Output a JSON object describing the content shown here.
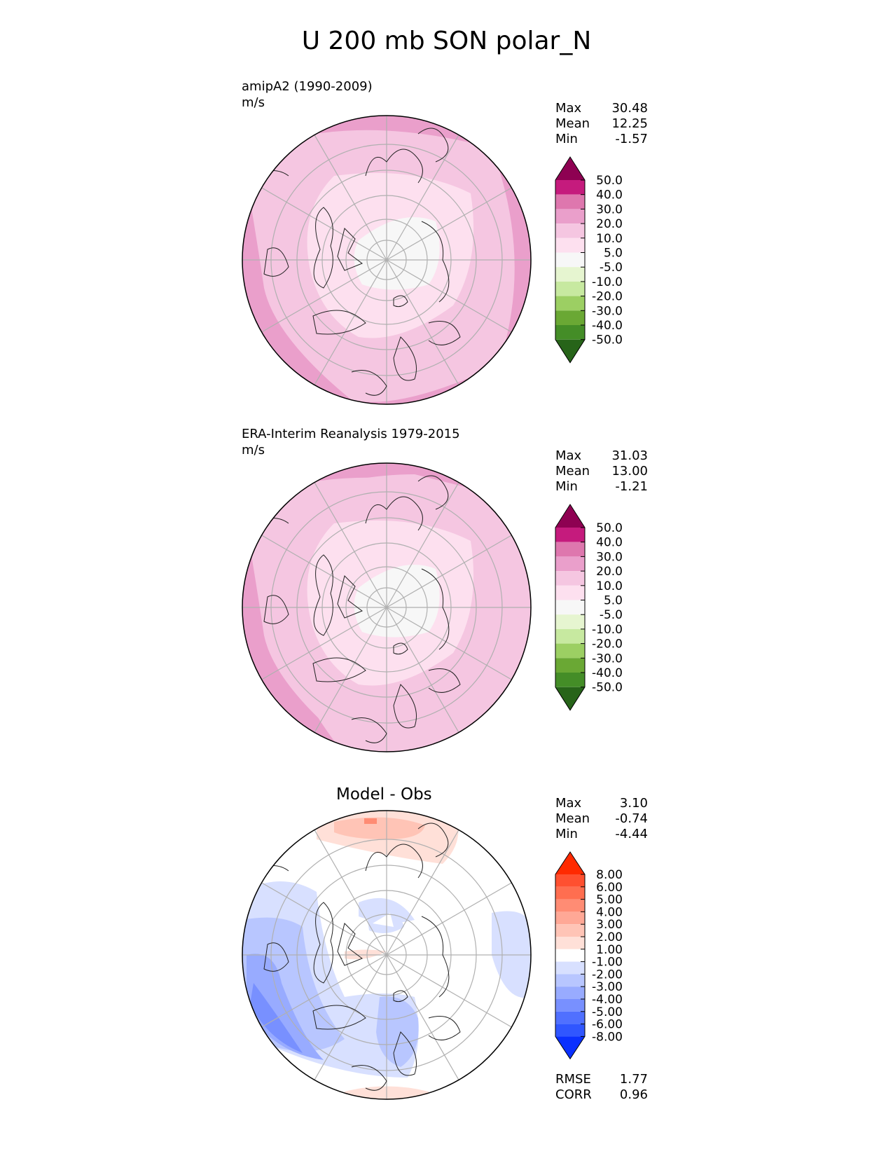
{
  "title": "U 200 mb SON polar_N",
  "panels": [
    {
      "label_line1": "amipA2 (1990-2009)",
      "label_line2": "m/s",
      "stats": {
        "max_label": "Max",
        "max": "30.48",
        "mean_label": "Mean",
        "mean": "12.25",
        "min_label": "Min",
        "min": "-1.57"
      }
    },
    {
      "label_line1": "ERA-Interim Reanalysis 1979-2015",
      "label_line2": "m/s",
      "stats": {
        "max_label": "Max",
        "max": "31.03",
        "mean_label": "Mean",
        "mean": "13.00",
        "min_label": "Min",
        "min": "-1.21"
      }
    },
    {
      "label_line1": "Model - Obs",
      "stats": {
        "max_label": "Max",
        "max": "3.10",
        "mean_label": "Mean",
        "mean": "-0.74",
        "min_label": "Min",
        "min": "-4.44"
      },
      "rmse_label": "RMSE",
      "rmse": "1.77",
      "corr_label": "CORR",
      "corr": "0.96"
    }
  ],
  "colorbars": {
    "field": {
      "ticks": [
        "50.0",
        "40.0",
        "30.0",
        "20.0",
        "10.0",
        "5.0",
        "-5.0",
        "-10.0",
        "-20.0",
        "-30.0",
        "-40.0",
        "-50.0"
      ],
      "colors": [
        "#8e0152",
        "#c51b7d",
        "#de77ae",
        "#ea9fcb",
        "#f5c6e1",
        "#fde0ef",
        "#f7f7f7",
        "#e6f5d0",
        "#c7e9a0",
        "#9ccf63",
        "#6aa834",
        "#448d27",
        "#276419"
      ]
    },
    "diff": {
      "ticks": [
        "8.00",
        "6.00",
        "5.00",
        "4.00",
        "3.00",
        "2.00",
        "1.00",
        "-1.00",
        "-2.00",
        "-3.00",
        "-4.00",
        "-5.00",
        "-6.00",
        "-8.00"
      ],
      "colors": [
        "#ff2a00",
        "#ff5030",
        "#ff6e50",
        "#ff8c74",
        "#ffa896",
        "#ffc4b6",
        "#ffe0d8",
        "#ffffff",
        "#d8e0ff",
        "#b8c6ff",
        "#98abff",
        "#7890ff",
        "#5070ff",
        "#3056ff",
        "#0a30ff"
      ]
    }
  },
  "chart_data": [
    {
      "type": "heatmap",
      "title": "amipA2 (1990-2009)",
      "units": "m/s",
      "projection": "north polar stereographic",
      "levels": [
        -50,
        -40,
        -30,
        -20,
        -10,
        -5,
        5,
        10,
        20,
        30,
        40,
        50
      ],
      "max": 30.48,
      "mean": 12.25,
      "min": -1.57
    },
    {
      "type": "heatmap",
      "title": "ERA-Interim Reanalysis 1979-2015",
      "units": "m/s",
      "projection": "north polar stereographic",
      "levels": [
        -50,
        -40,
        -30,
        -20,
        -10,
        -5,
        5,
        10,
        20,
        30,
        40,
        50
      ],
      "max": 31.03,
      "mean": 13.0,
      "min": -1.21
    },
    {
      "type": "heatmap",
      "title": "Model - Obs",
      "projection": "north polar stereographic",
      "levels": [
        -8,
        -6,
        -5,
        -4,
        -3,
        -2,
        -1,
        1,
        2,
        3,
        4,
        5,
        6,
        8
      ],
      "max": 3.1,
      "mean": -0.74,
      "min": -4.44,
      "rmse": 1.77,
      "corr": 0.96
    }
  ]
}
